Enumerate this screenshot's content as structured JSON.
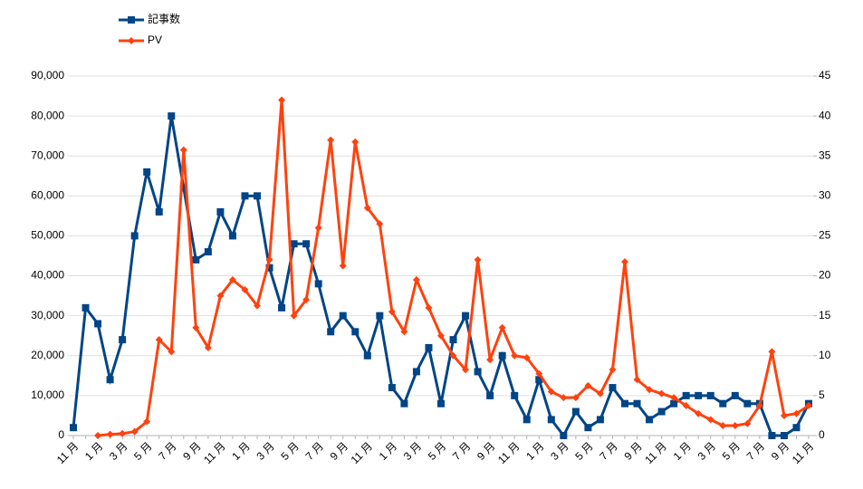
{
  "chart_data": {
    "type": "line",
    "categories": [
      "11 月",
      null,
      "1 月",
      null,
      "3 月",
      null,
      "5 月",
      null,
      "7 月",
      null,
      "9 月",
      null,
      "11 月",
      null,
      "1 月",
      null,
      "3 月",
      null,
      "5 月",
      null,
      "7 月",
      null,
      "9 月",
      null,
      "11 月",
      null,
      "1 月",
      null,
      "3 月",
      null,
      "5 月",
      null,
      "7 月",
      null,
      "9 月",
      null,
      "11 月",
      null,
      "1 月",
      null,
      "3 月",
      null,
      "5 月",
      null,
      "7 月",
      null,
      "9 月",
      null,
      "11 月",
      null,
      "1 月",
      null,
      "3 月",
      null,
      "5 月",
      null,
      "7 月",
      null,
      "9 月",
      null,
      "11 月"
    ],
    "series": [
      {
        "name": "記事数",
        "color": "#004586",
        "marker": "square",
        "axis": "y2",
        "values": [
          1,
          16,
          14,
          7,
          12,
          25,
          33,
          28,
          40,
          31,
          22,
          23,
          28,
          25,
          30,
          30,
          21,
          16,
          24,
          24,
          19,
          13,
          15,
          13,
          10,
          15,
          6,
          4,
          8,
          11,
          4,
          12,
          15,
          8,
          5,
          10,
          5,
          2,
          7,
          2,
          0,
          3,
          1,
          2,
          6,
          4,
          4,
          2,
          3,
          4,
          5,
          5,
          5,
          4,
          5,
          4,
          4,
          0,
          0,
          1,
          4
        ]
      },
      {
        "name": "PV",
        "color": "#ff420e",
        "marker": "diamond",
        "values": [
          null,
          null,
          0,
          300,
          500,
          1000,
          3500,
          24000,
          21000,
          71500,
          27000,
          22000,
          35000,
          39000,
          36500,
          32500,
          44000,
          84000,
          30000,
          34000,
          52000,
          74000,
          42500,
          73500,
          57000,
          53000,
          31000,
          26000,
          39000,
          32000,
          25000,
          20000,
          16500,
          44000,
          19000,
          27000,
          20000,
          19500,
          15500,
          11000,
          9500,
          9500,
          12500,
          10500,
          16500,
          43500,
          14000,
          11500,
          10500,
          9500,
          7500,
          5500,
          4000,
          2500,
          2500,
          3000,
          7500,
          21000,
          5000,
          5500,
          7500
        ]
      }
    ],
    "ylim": [
      0,
      90000
    ],
    "yticks": [
      0,
      {
        "value": 10000,
        "label": "10,000"
      },
      {
        "value": 20000,
        "label": "20,000"
      },
      {
        "value": 30000,
        "label": "30,000"
      },
      {
        "value": 40000,
        "label": "40,000"
      },
      {
        "value": 50000,
        "label": "50,000"
      },
      {
        "value": 60000,
        "label": "60,000"
      },
      {
        "value": 70000,
        "label": "70,000"
      },
      {
        "value": 80000,
        "label": "80,000"
      },
      {
        "value": 90000,
        "label": "90,000"
      }
    ],
    "y2lim": [
      0,
      45
    ],
    "y2ticks": [
      0,
      5,
      10,
      15,
      20,
      25,
      30,
      35,
      40,
      45
    ],
    "grid": true,
    "legend": "top-left"
  }
}
